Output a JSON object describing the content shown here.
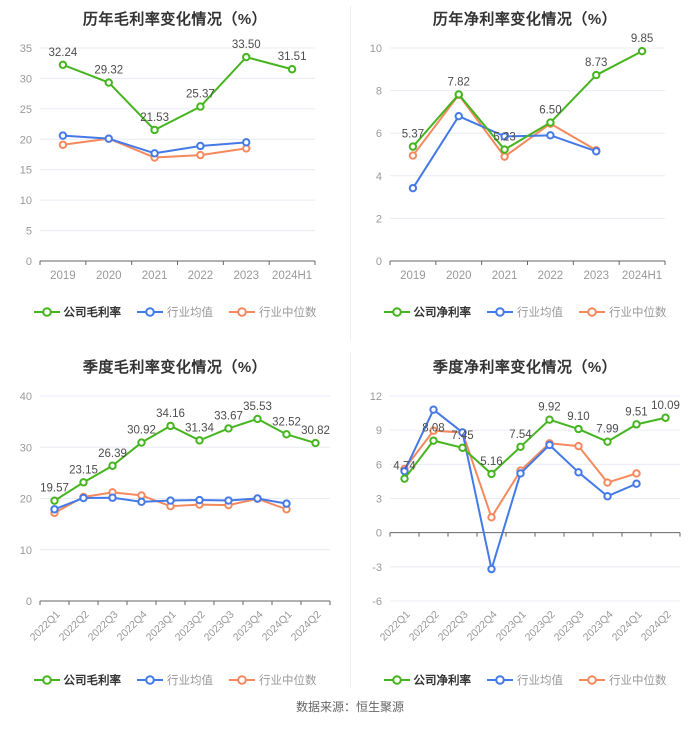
{
  "footer": {
    "source_note": "数据来源：恒生聚源"
  },
  "colors": {
    "company": "#45b41f",
    "industry_avg": "#4479e8",
    "industry_median": "#f5895e",
    "grid": "#e8ecf4",
    "axis_line": "#666666",
    "axis_text": "#999999",
    "data_label": "#4d4d4d",
    "title_text": "#333333",
    "divider": "#ededed"
  },
  "chart_data": [
    {
      "id": "annual-gross-margin",
      "type": "line",
      "title": "历年毛利率变化情况（%）",
      "categories": [
        "2019",
        "2020",
        "2021",
        "2022",
        "2023",
        "2024H1"
      ],
      "ylim": [
        0,
        35
      ],
      "ystep": 5,
      "rotate_x_labels": false,
      "grid": true,
      "legend_position": "bottom",
      "series": [
        {
          "name": "公司毛利率",
          "color_key": "company",
          "values": [
            32.24,
            29.32,
            21.53,
            25.37,
            33.5,
            31.51
          ],
          "labels": [
            "32.24",
            "29.32",
            "21.53",
            "25.37",
            "33.50",
            "31.51"
          ]
        },
        {
          "name": "行业均值",
          "color_key": "industry_avg",
          "values": [
            20.6,
            20.1,
            17.7,
            18.9,
            19.5
          ]
        },
        {
          "name": "行业中位数",
          "color_key": "industry_median",
          "values": [
            19.1,
            20.1,
            17.0,
            17.4,
            18.5
          ]
        }
      ]
    },
    {
      "id": "annual-net-margin",
      "type": "line",
      "title": "历年净利率变化情况（%）",
      "categories": [
        "2019",
        "2020",
        "2021",
        "2022",
        "2023",
        "2024H1"
      ],
      "ylim": [
        0,
        10
      ],
      "ystep": 2,
      "rotate_x_labels": false,
      "grid": true,
      "legend_position": "bottom",
      "series": [
        {
          "name": "公司净利率",
          "color_key": "company",
          "values": [
            5.37,
            7.82,
            5.23,
            6.5,
            8.73,
            9.85
          ],
          "labels": [
            "5.37",
            "7.82",
            "5.23",
            "6.50",
            "8.73",
            "9.85"
          ]
        },
        {
          "name": "行业均值",
          "color_key": "industry_avg",
          "values": [
            3.42,
            6.8,
            5.85,
            5.9,
            5.15
          ]
        },
        {
          "name": "行业中位数",
          "color_key": "industry_median",
          "values": [
            4.95,
            7.8,
            4.9,
            6.45,
            5.2
          ]
        }
      ]
    },
    {
      "id": "quarterly-gross-margin",
      "type": "line",
      "title": "季度毛利率变化情况（%）",
      "categories": [
        "2022Q1",
        "2022Q2",
        "2022Q3",
        "2022Q4",
        "2023Q1",
        "2023Q2",
        "2023Q3",
        "2023Q4",
        "2024Q1",
        "2024Q2"
      ],
      "ylim": [
        0,
        40
      ],
      "ystep": 10,
      "rotate_x_labels": true,
      "grid": true,
      "legend_position": "bottom",
      "series": [
        {
          "name": "公司毛利率",
          "color_key": "company",
          "values": [
            19.57,
            23.15,
            26.39,
            30.92,
            34.16,
            31.34,
            33.67,
            35.53,
            32.52,
            30.82
          ],
          "labels": [
            "19.57",
            "23.15",
            "26.39",
            "30.92",
            "34.16",
            "31.34",
            "33.67",
            "35.53",
            "32.52",
            "30.82"
          ]
        },
        {
          "name": "行业均值",
          "color_key": "industry_avg",
          "values": [
            17.9,
            20.1,
            20.15,
            19.35,
            19.6,
            19.7,
            19.6,
            20.0,
            19.0
          ]
        },
        {
          "name": "行业中位数",
          "color_key": "industry_median",
          "values": [
            17.2,
            20.3,
            21.2,
            20.6,
            18.5,
            18.8,
            18.7,
            19.95,
            17.9
          ]
        }
      ]
    },
    {
      "id": "quarterly-net-margin",
      "type": "line",
      "title": "季度净利率变化情况（%）",
      "categories": [
        "2022Q1",
        "2022Q2",
        "2022Q3",
        "2022Q4",
        "2023Q1",
        "2023Q2",
        "2023Q3",
        "2023Q4",
        "2024Q1",
        "2024Q2"
      ],
      "ylim": [
        -6,
        12
      ],
      "ystep": 3,
      "rotate_x_labels": true,
      "grid": true,
      "legend_position": "bottom",
      "series": [
        {
          "name": "公司净利率",
          "color_key": "company",
          "values": [
            4.74,
            8.08,
            7.45,
            5.16,
            7.54,
            9.92,
            9.1,
            7.99,
            9.51,
            10.09
          ],
          "labels": [
            "4.74",
            "8.08",
            "7.45",
            "5.16",
            "7.54",
            "9.92",
            "9.10",
            "7.99",
            "9.51",
            "10.09"
          ]
        },
        {
          "name": "行业均值",
          "color_key": "industry_avg",
          "values": [
            5.4,
            10.8,
            8.8,
            -3.2,
            5.2,
            7.7,
            5.3,
            3.2,
            4.3
          ]
        },
        {
          "name": "行业中位数",
          "color_key": "industry_median",
          "values": [
            5.6,
            8.95,
            8.8,
            1.35,
            5.45,
            7.85,
            7.6,
            4.4,
            5.2
          ]
        }
      ]
    }
  ]
}
